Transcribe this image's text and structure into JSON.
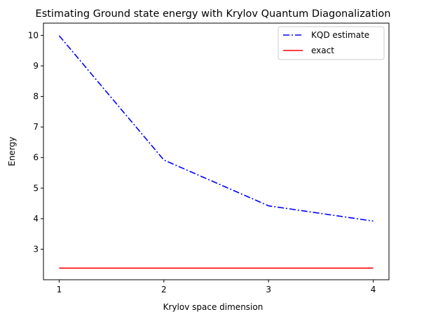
{
  "chart_data": {
    "type": "line",
    "title": "Estimating Ground state energy with Krylov Quantum Diagonalization",
    "xlabel": "Krylov space dimension",
    "ylabel": "Energy",
    "x": [
      1,
      2,
      3,
      4
    ],
    "xticks": [
      "1",
      "2",
      "3",
      "4"
    ],
    "yticks": [
      "3",
      "4",
      "5",
      "6",
      "7",
      "8",
      "9",
      "10"
    ],
    "xlim": [
      0.85,
      4.15
    ],
    "ylim": [
      2.0,
      10.4
    ],
    "grid": false,
    "legend_position": "top-right",
    "series": [
      {
        "name": "KQD estimate",
        "values": [
          9.99,
          5.92,
          4.42,
          3.92
        ],
        "color": "#0000ff",
        "style": "dashdot"
      },
      {
        "name": "exact",
        "values": [
          2.38,
          2.38,
          2.38,
          2.38
        ],
        "color": "#ff0000",
        "style": "solid"
      }
    ]
  }
}
